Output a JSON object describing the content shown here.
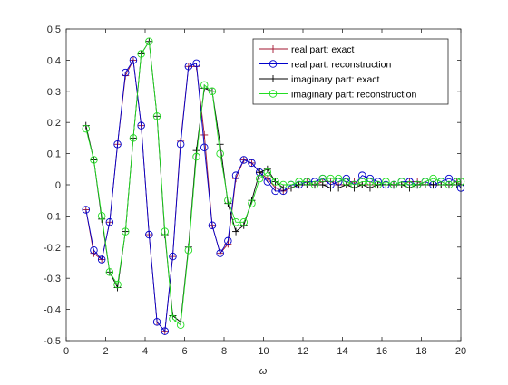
{
  "chart_data": {
    "type": "line",
    "xlabel": "ω",
    "ylabel": "",
    "xlim": [
      0,
      20
    ],
    "ylim": [
      -0.5,
      0.5
    ],
    "xticks": [
      "0",
      "2",
      "4",
      "6",
      "8",
      "10",
      "12",
      "14",
      "16",
      "18",
      "20"
    ],
    "yticks": [
      "-0.5",
      "-0.4",
      "-0.3",
      "-0.2",
      "-0.1",
      "0",
      "0.1",
      "0.2",
      "0.3",
      "0.4",
      "0.5"
    ],
    "grid": false,
    "legend_position": "top-right",
    "x": [
      1.0,
      1.4,
      1.8,
      2.2,
      2.6,
      3.0,
      3.4,
      3.8,
      4.2,
      4.6,
      5.0,
      5.4,
      5.8,
      6.2,
      6.6,
      7.0,
      7.4,
      7.8,
      8.2,
      8.6,
      9.0,
      9.4,
      9.8,
      10.2,
      10.6,
      11.0,
      11.4,
      11.8,
      12.2,
      12.6,
      13.0,
      13.4,
      13.8,
      14.2,
      14.6,
      15.0,
      15.4,
      15.8,
      16.2,
      16.6,
      17.0,
      17.4,
      17.8,
      18.2,
      18.6,
      19.0,
      19.4,
      19.8,
      20.0
    ],
    "series": [
      {
        "name": "real part: exact",
        "color": "#a2142f",
        "marker": "plus",
        "values": [
          -0.08,
          -0.22,
          -0.24,
          -0.12,
          0.13,
          0.35,
          0.4,
          0.19,
          -0.16,
          -0.44,
          -0.47,
          -0.23,
          0.14,
          0.38,
          0.38,
          0.16,
          -0.13,
          -0.22,
          -0.19,
          0.02,
          0.08,
          0.07,
          0.04,
          0.02,
          -0.01,
          -0.02,
          -0.01,
          0.0,
          0.01,
          0.0,
          0.01,
          0.01,
          0.0,
          0.0,
          0.01,
          0.0,
          0.0,
          0.0,
          0.0,
          0.0,
          0.0,
          0.01,
          0.01,
          0.0,
          0.0,
          0.0,
          0.0,
          0.01,
          0.0
        ]
      },
      {
        "name": "real part: reconstruction",
        "color": "#0000cc",
        "marker": "circle",
        "values": [
          -0.08,
          -0.21,
          -0.24,
          -0.12,
          0.13,
          0.36,
          0.4,
          0.19,
          -0.16,
          -0.44,
          -0.47,
          -0.23,
          0.13,
          0.38,
          0.39,
          0.12,
          -0.13,
          -0.22,
          -0.18,
          0.03,
          0.08,
          0.07,
          0.04,
          0.01,
          -0.02,
          -0.02,
          0.0,
          0.0,
          0.01,
          0.01,
          0.02,
          0.0,
          0.01,
          0.02,
          0.0,
          0.03,
          0.02,
          0.01,
          0.0,
          0.0,
          0.01,
          0.01,
          0.0,
          0.01,
          0.0,
          0.01,
          0.02,
          0.01,
          -0.01
        ]
      },
      {
        "name": "imaginary part: exact",
        "color": "#000000",
        "marker": "plus",
        "values": [
          0.19,
          0.08,
          -0.11,
          -0.28,
          -0.33,
          -0.15,
          0.15,
          0.42,
          0.46,
          0.22,
          -0.16,
          -0.42,
          -0.44,
          -0.2,
          0.11,
          0.31,
          0.3,
          0.13,
          -0.06,
          -0.15,
          -0.13,
          -0.05,
          0.04,
          0.05,
          0.01,
          -0.01,
          -0.01,
          0.0,
          0.0,
          0.0,
          0.0,
          -0.01,
          -0.01,
          0.0,
          -0.01,
          0.0,
          -0.01,
          0.0,
          0.0,
          0.0,
          0.0,
          -0.01,
          0.0,
          0.0,
          0.0,
          0.0,
          0.0,
          0.0,
          0.0
        ]
      },
      {
        "name": "imaginary part: reconstruction",
        "color": "#22dd22",
        "marker": "circle",
        "values": [
          0.18,
          0.08,
          -0.1,
          -0.28,
          -0.32,
          -0.15,
          0.15,
          0.42,
          0.46,
          0.22,
          -0.15,
          -0.43,
          -0.45,
          -0.21,
          0.09,
          0.32,
          0.3,
          0.1,
          -0.05,
          -0.12,
          -0.12,
          -0.06,
          0.02,
          0.04,
          0.01,
          0.0,
          0.0,
          0.01,
          0.01,
          0.0,
          0.02,
          0.02,
          0.02,
          0.01,
          0.0,
          0.01,
          0.01,
          0.0,
          0.01,
          0.0,
          0.01,
          0.0,
          0.0,
          0.01,
          0.02,
          0.01,
          0.0,
          0.01,
          0.01
        ]
      }
    ]
  }
}
